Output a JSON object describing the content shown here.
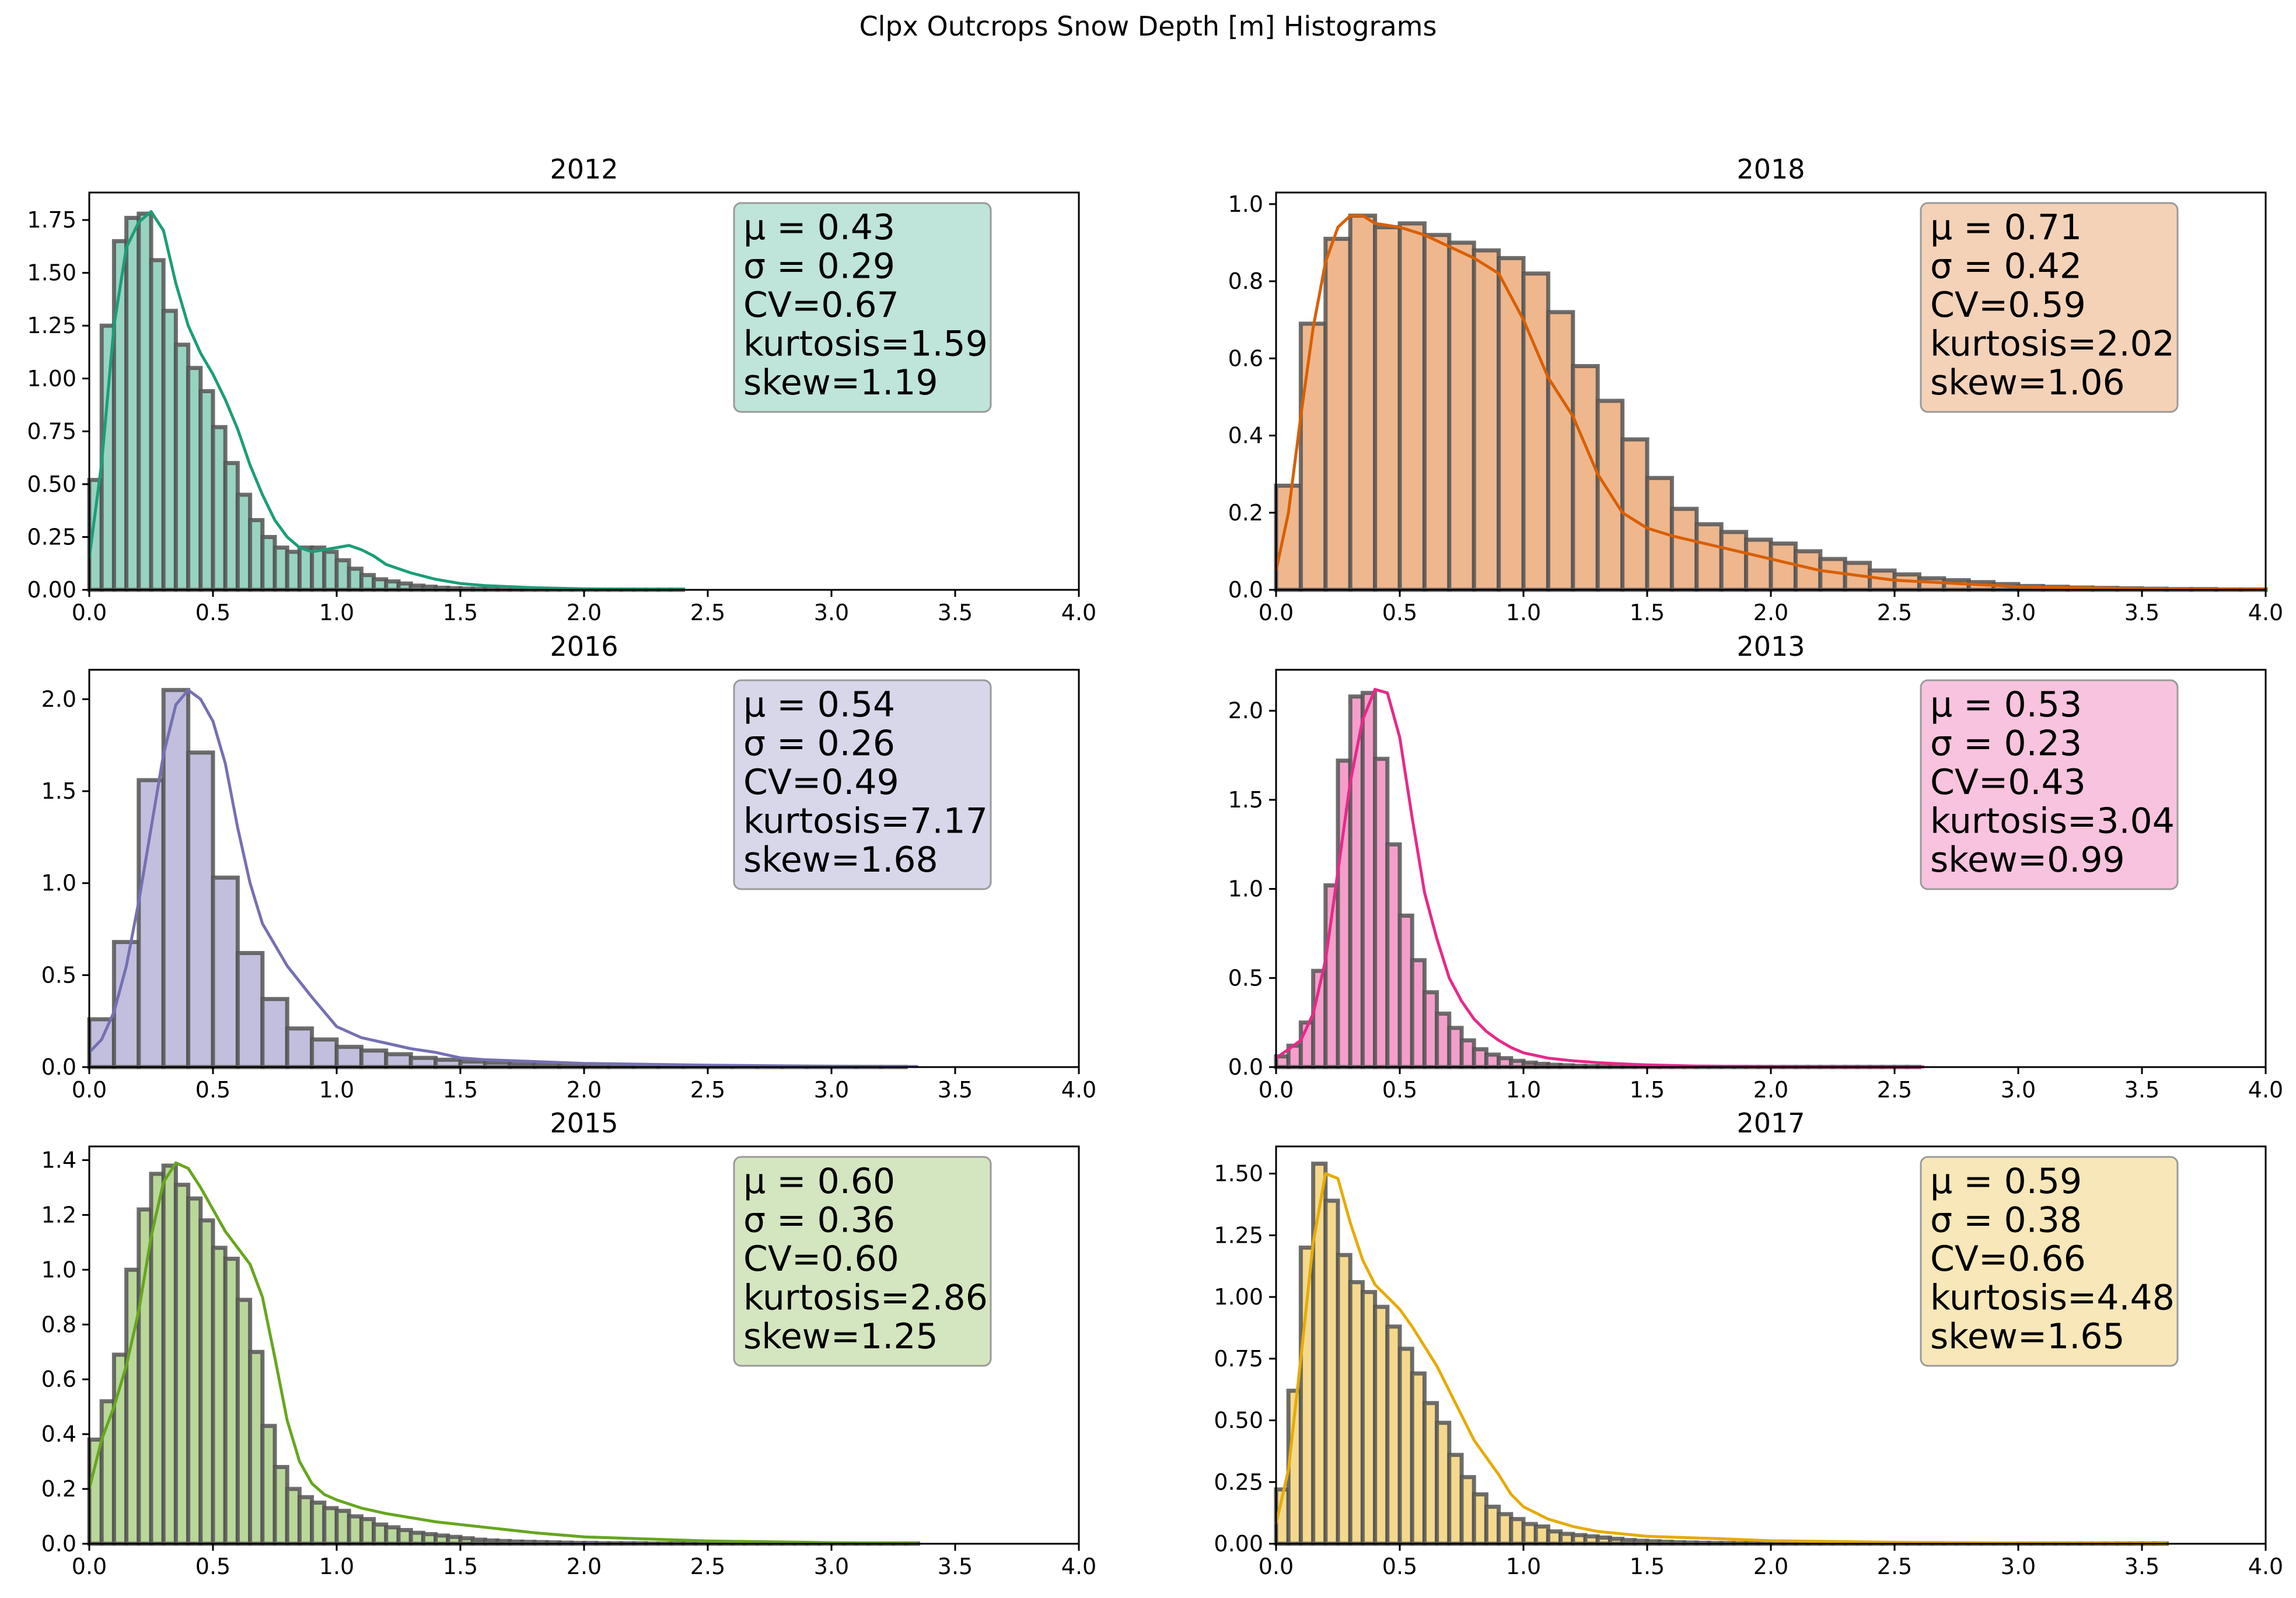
{
  "chart_data": {
    "type": "bar",
    "title": "Clpx Outcrops Snow Depth [m] Histograms",
    "xlim": [
      0,
      4.0
    ],
    "x_ticks": [
      "0.0",
      "0.5",
      "1.0",
      "1.5",
      "2.0",
      "2.5",
      "3.0",
      "3.5",
      "4.0"
    ],
    "panels": [
      {
        "title": "2012",
        "color": "#1b9e77",
        "bin_width": 0.05,
        "ylim": [
          0,
          1.88
        ],
        "y_ticks": [
          "0.00",
          "0.25",
          "0.50",
          "0.75",
          "1.00",
          "1.25",
          "1.50",
          "1.75"
        ],
        "values": [
          0.52,
          1.25,
          1.65,
          1.76,
          1.78,
          1.56,
          1.32,
          1.16,
          1.05,
          0.94,
          0.77,
          0.6,
          0.45,
          0.33,
          0.25,
          0.2,
          0.18,
          0.2,
          0.2,
          0.18,
          0.14,
          0.1,
          0.07,
          0.05,
          0.04,
          0.03,
          0.02,
          0.015,
          0.01,
          0.008,
          0.006,
          0.005,
          0.004,
          0.003,
          0.002,
          0.002,
          0.002,
          0.001,
          0.001,
          0.001,
          0.001,
          0.001,
          0.001,
          0.001,
          0.001,
          0.001,
          0.001,
          0.001
        ],
        "kde": {
          "x": [
            0,
            0.05,
            0.1,
            0.15,
            0.2,
            0.25,
            0.3,
            0.35,
            0.4,
            0.45,
            0.5,
            0.55,
            0.6,
            0.65,
            0.7,
            0.75,
            0.8,
            0.85,
            0.9,
            0.95,
            1.0,
            1.05,
            1.1,
            1.15,
            1.2,
            1.3,
            1.4,
            1.5,
            1.6,
            1.8,
            2.0,
            2.2,
            2.4
          ],
          "y": [
            0.15,
            0.6,
            1.25,
            1.62,
            1.74,
            1.79,
            1.7,
            1.45,
            1.25,
            1.12,
            1.02,
            0.9,
            0.76,
            0.59,
            0.45,
            0.33,
            0.25,
            0.2,
            0.18,
            0.19,
            0.2,
            0.21,
            0.19,
            0.16,
            0.12,
            0.08,
            0.05,
            0.03,
            0.02,
            0.01,
            0.005,
            0.003,
            0.002
          ]
        },
        "stats": [
          "μ = 0.43",
          "σ = 0.29",
          "CV=0.67",
          "kurtosis=1.59",
          "skew=1.19"
        ]
      },
      {
        "title": "2018",
        "color": "#d95f02",
        "bin_width": 0.1,
        "ylim": [
          0,
          1.03
        ],
        "y_ticks": [
          "0.0",
          "0.2",
          "0.4",
          "0.6",
          "0.8",
          "1.0"
        ],
        "values": [
          0.27,
          0.69,
          0.91,
          0.97,
          0.94,
          0.95,
          0.92,
          0.9,
          0.88,
          0.86,
          0.82,
          0.72,
          0.58,
          0.49,
          0.39,
          0.29,
          0.21,
          0.17,
          0.15,
          0.13,
          0.12,
          0.1,
          0.08,
          0.07,
          0.05,
          0.04,
          0.03,
          0.025,
          0.02,
          0.015,
          0.01,
          0.008,
          0.006,
          0.005,
          0.004,
          0.003,
          0.002,
          0.002,
          0.001,
          0.001
        ],
        "kde": {
          "x": [
            0,
            0.05,
            0.1,
            0.15,
            0.2,
            0.25,
            0.3,
            0.35,
            0.4,
            0.5,
            0.6,
            0.7,
            0.8,
            0.9,
            1.0,
            1.1,
            1.2,
            1.3,
            1.4,
            1.5,
            1.6,
            1.8,
            2.0,
            2.2,
            2.5,
            3.0,
            3.5,
            4.0
          ],
          "y": [
            0.05,
            0.2,
            0.45,
            0.68,
            0.85,
            0.94,
            0.97,
            0.97,
            0.95,
            0.94,
            0.92,
            0.89,
            0.86,
            0.82,
            0.7,
            0.55,
            0.45,
            0.3,
            0.2,
            0.16,
            0.14,
            0.11,
            0.08,
            0.05,
            0.025,
            0.008,
            0.003,
            0.001
          ]
        },
        "stats": [
          "μ = 0.71",
          "σ = 0.42",
          "CV=0.59",
          "kurtosis=2.02",
          "skew=1.06"
        ]
      },
      {
        "title": "2016",
        "color": "#7570b3",
        "bin_width": 0.1,
        "ylim": [
          0,
          2.16
        ],
        "y_ticks": [
          "0.0",
          "0.5",
          "1.0",
          "1.5",
          "2.0"
        ],
        "values": [
          0.26,
          0.68,
          1.56,
          2.05,
          1.71,
          1.03,
          0.62,
          0.37,
          0.21,
          0.15,
          0.11,
          0.09,
          0.07,
          0.05,
          0.04,
          0.03,
          0.025,
          0.02,
          0.015,
          0.012,
          0.01,
          0.008,
          0.006,
          0.005,
          0.004,
          0.003,
          0.002,
          0.002,
          0.001,
          0.001,
          0.001,
          0.001,
          0.001
        ],
        "kde": {
          "x": [
            0,
            0.05,
            0.1,
            0.15,
            0.2,
            0.25,
            0.3,
            0.35,
            0.4,
            0.45,
            0.5,
            0.55,
            0.6,
            0.65,
            0.7,
            0.8,
            0.9,
            1.0,
            1.1,
            1.2,
            1.3,
            1.4,
            1.5,
            1.6,
            1.8,
            2.0,
            2.5,
            3.0,
            3.35
          ],
          "y": [
            0.08,
            0.15,
            0.3,
            0.55,
            0.9,
            1.3,
            1.7,
            1.97,
            2.05,
            2.0,
            1.88,
            1.65,
            1.3,
            1.0,
            0.78,
            0.55,
            0.38,
            0.22,
            0.16,
            0.13,
            0.1,
            0.08,
            0.05,
            0.04,
            0.03,
            0.02,
            0.01,
            0.005,
            0.003
          ]
        },
        "stats": [
          "μ = 0.54",
          "σ = 0.26",
          "CV=0.49",
          "kurtosis=7.17",
          "skew=1.68"
        ]
      },
      {
        "title": "2013",
        "color": "#e7298a",
        "bin_width": 0.05,
        "ylim": [
          0,
          2.23
        ],
        "y_ticks": [
          "0.0",
          "0.5",
          "1.0",
          "1.5",
          "2.0"
        ],
        "values": [
          0.06,
          0.12,
          0.25,
          0.54,
          1.02,
          1.72,
          2.08,
          2.1,
          1.73,
          1.25,
          0.85,
          0.6,
          0.42,
          0.3,
          0.22,
          0.15,
          0.1,
          0.07,
          0.05,
          0.035,
          0.025,
          0.018,
          0.013,
          0.01,
          0.007,
          0.005,
          0.004,
          0.003,
          0.002,
          0.002,
          0.001,
          0.001,
          0.001,
          0.001,
          0.001,
          0.001,
          0.001,
          0.001,
          0.001,
          0.001,
          0.001,
          0.001,
          0.001,
          0.001,
          0.001,
          0.001,
          0.001,
          0.001,
          0.001,
          0.001,
          0.001,
          0.001
        ],
        "kde": {
          "x": [
            0,
            0.05,
            0.1,
            0.15,
            0.2,
            0.25,
            0.3,
            0.35,
            0.4,
            0.45,
            0.5,
            0.55,
            0.6,
            0.65,
            0.7,
            0.75,
            0.8,
            0.85,
            0.9,
            0.95,
            1.0,
            1.1,
            1.2,
            1.3,
            1.4,
            1.5,
            1.7,
            2.0,
            2.3,
            2.62
          ],
          "y": [
            0.05,
            0.1,
            0.15,
            0.3,
            0.6,
            1.1,
            1.6,
            1.95,
            2.12,
            2.1,
            1.85,
            1.4,
            0.98,
            0.72,
            0.5,
            0.37,
            0.27,
            0.2,
            0.15,
            0.11,
            0.08,
            0.05,
            0.035,
            0.025,
            0.018,
            0.012,
            0.006,
            0.003,
            0.002,
            0.001
          ]
        },
        "stats": [
          "μ = 0.53",
          "σ = 0.23",
          "CV=0.43",
          "kurtosis=3.04",
          "skew=0.99"
        ]
      },
      {
        "title": "2015",
        "color": "#66a61e",
        "bin_width": 0.05,
        "ylim": [
          0,
          1.45
        ],
        "y_ticks": [
          "0.0",
          "0.2",
          "0.4",
          "0.6",
          "0.8",
          "1.0",
          "1.2",
          "1.4"
        ],
        "values": [
          0.38,
          0.52,
          0.69,
          1.0,
          1.22,
          1.35,
          1.38,
          1.31,
          1.26,
          1.18,
          1.08,
          1.04,
          0.89,
          0.7,
          0.43,
          0.28,
          0.2,
          0.17,
          0.15,
          0.13,
          0.12,
          0.1,
          0.09,
          0.07,
          0.06,
          0.05,
          0.04,
          0.035,
          0.03,
          0.025,
          0.02,
          0.015,
          0.012,
          0.01,
          0.008,
          0.007,
          0.006,
          0.005,
          0.004,
          0.003,
          0.003,
          0.002,
          0.002,
          0.002,
          0.002,
          0.001,
          0.001,
          0.001,
          0.001,
          0.001,
          0.001,
          0.001,
          0.001,
          0.001,
          0.001,
          0.001,
          0.001,
          0.001,
          0.001,
          0.001,
          0.001,
          0.001,
          0.001,
          0.001,
          0.001,
          0.001,
          0.001
        ],
        "kde": {
          "x": [
            0,
            0.05,
            0.1,
            0.15,
            0.2,
            0.25,
            0.3,
            0.35,
            0.4,
            0.45,
            0.5,
            0.55,
            0.6,
            0.65,
            0.7,
            0.75,
            0.8,
            0.85,
            0.9,
            0.95,
            1.0,
            1.1,
            1.2,
            1.4,
            1.6,
            1.8,
            2.0,
            2.5,
            3.0,
            3.35
          ],
          "y": [
            0.2,
            0.38,
            0.5,
            0.65,
            0.85,
            1.12,
            1.32,
            1.39,
            1.37,
            1.3,
            1.22,
            1.14,
            1.08,
            1.02,
            0.9,
            0.68,
            0.45,
            0.3,
            0.22,
            0.18,
            0.16,
            0.13,
            0.11,
            0.08,
            0.06,
            0.04,
            0.025,
            0.01,
            0.004,
            0.002
          ]
        },
        "stats": [
          "μ = 0.60",
          "σ = 0.36",
          "CV=0.60",
          "kurtosis=2.86",
          "skew=1.25"
        ]
      },
      {
        "title": "2017",
        "color": "#e6ab02",
        "bin_width": 0.05,
        "ylim": [
          0,
          1.61
        ],
        "y_ticks": [
          "0.00",
          "0.25",
          "0.50",
          "0.75",
          "1.00",
          "1.25",
          "1.50"
        ],
        "values": [
          0.22,
          0.62,
          1.2,
          1.54,
          1.39,
          1.17,
          1.06,
          1.02,
          0.96,
          0.88,
          0.79,
          0.69,
          0.57,
          0.49,
          0.36,
          0.27,
          0.2,
          0.15,
          0.12,
          0.1,
          0.08,
          0.07,
          0.05,
          0.04,
          0.035,
          0.03,
          0.025,
          0.02,
          0.015,
          0.012,
          0.01,
          0.008,
          0.006,
          0.005,
          0.004,
          0.003,
          0.003,
          0.002,
          0.002,
          0.002,
          0.001,
          0.001,
          0.001,
          0.001,
          0.001,
          0.001,
          0.001,
          0.001,
          0.001,
          0.001,
          0.001,
          0.001,
          0.001,
          0.001,
          0.001,
          0.001,
          0.001,
          0.001,
          0.001,
          0.001,
          0.001,
          0.001,
          0.001,
          0.001,
          0.001,
          0.001,
          0.001,
          0.001,
          0.001,
          0.001,
          0.001,
          0.001
        ],
        "kde": {
          "x": [
            0,
            0.05,
            0.1,
            0.15,
            0.2,
            0.25,
            0.3,
            0.35,
            0.4,
            0.45,
            0.5,
            0.55,
            0.6,
            0.65,
            0.7,
            0.75,
            0.8,
            0.85,
            0.9,
            0.95,
            1.0,
            1.1,
            1.2,
            1.3,
            1.5,
            1.8,
            2.0,
            2.5,
            3.0,
            3.6
          ],
          "y": [
            0.08,
            0.3,
            0.75,
            1.22,
            1.5,
            1.48,
            1.3,
            1.15,
            1.05,
            1.0,
            0.95,
            0.88,
            0.8,
            0.72,
            0.62,
            0.52,
            0.42,
            0.35,
            0.28,
            0.2,
            0.15,
            0.1,
            0.07,
            0.05,
            0.03,
            0.02,
            0.012,
            0.006,
            0.003,
            0.001
          ]
        },
        "stats": [
          "μ = 0.59",
          "σ = 0.38",
          "CV=0.66",
          "kurtosis=4.48",
          "skew=1.65"
        ]
      }
    ]
  }
}
